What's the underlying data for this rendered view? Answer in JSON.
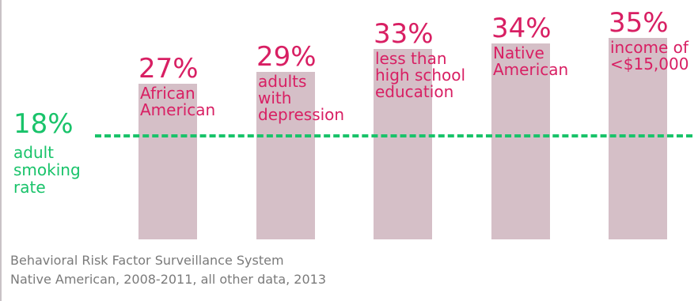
{
  "chart_data": {
    "type": "bar",
    "categories": [
      "African\nAmerican",
      "adults\nwith\ndepression",
      "less than\nhigh school\neducation",
      "Native\nAmerican",
      "income of\n<$15,000"
    ],
    "values": [
      27,
      29,
      33,
      34,
      35
    ],
    "value_labels": [
      "27%",
      "29%",
      "33%",
      "34%",
      "35%"
    ],
    "reference_line": {
      "value": 18,
      "value_label": "18%",
      "label": "adult\nsmoking\nrate",
      "style": "dashed",
      "color": "#19c36a"
    },
    "ylim": [
      0,
      40
    ],
    "grid": false,
    "bar_color": "#d5bfc7",
    "label_color": "#d81f63"
  },
  "footer": {
    "source_line_1": "Behavioral Risk Factor Surveillance System",
    "source_line_2": "Native American, 2008-2011, all other data, 2013"
  }
}
